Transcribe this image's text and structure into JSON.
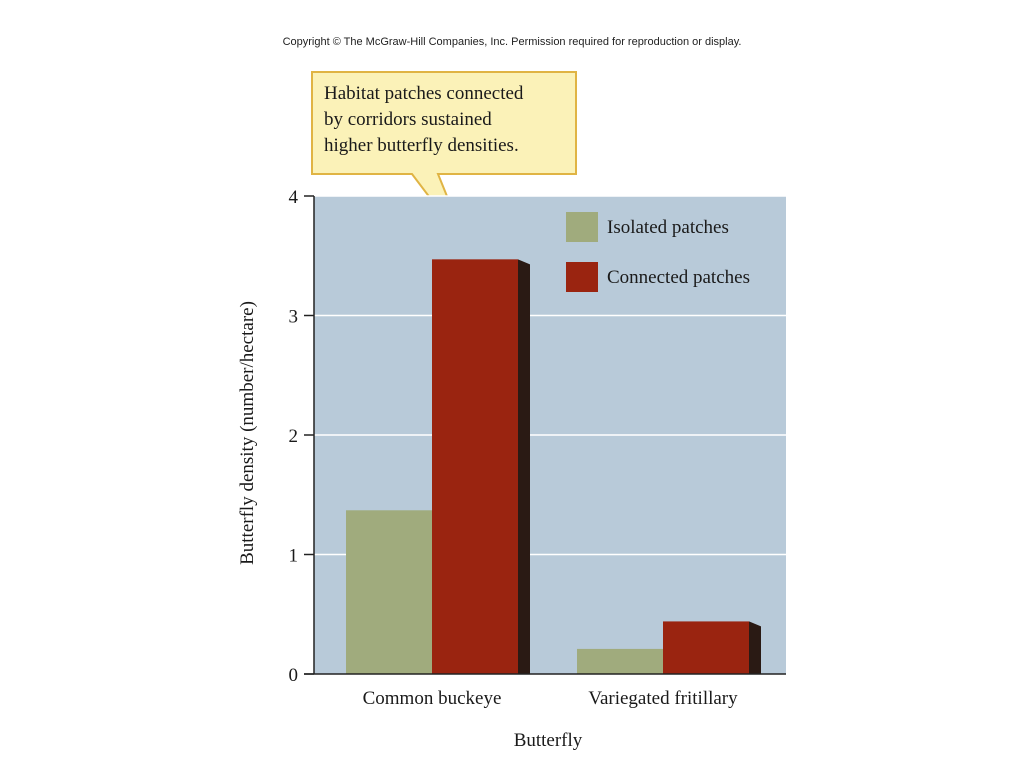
{
  "copyright": "Copyright © The McGraw-Hill Companies, Inc. Permission required for reproduction or display.",
  "callout": {
    "lines": [
      "Habitat patches connected",
      "by corridors sustained",
      "higher butterfly densities."
    ]
  },
  "colors": {
    "plot_bg": "#b8cad9",
    "isolated": "#a0ab7d",
    "connected": "#9a2410",
    "callout_bg": "#fbf2b8",
    "callout_border": "#e0b444"
  },
  "chart_data": {
    "type": "bar",
    "categories": [
      "Common buckeye",
      "Variegated fritillary"
    ],
    "series": [
      {
        "name": "Isolated patches",
        "values": [
          1.37,
          0.21
        ]
      },
      {
        "name": "Connected patches",
        "values": [
          3.47,
          0.44
        ]
      }
    ],
    "xlabel": "Butterfly",
    "ylabel": "Butterfly density (number/hectare)",
    "ylim": [
      0,
      4
    ],
    "yticks": [
      0,
      1,
      2,
      3,
      4
    ],
    "grid": true,
    "legend_position": "top-right"
  }
}
